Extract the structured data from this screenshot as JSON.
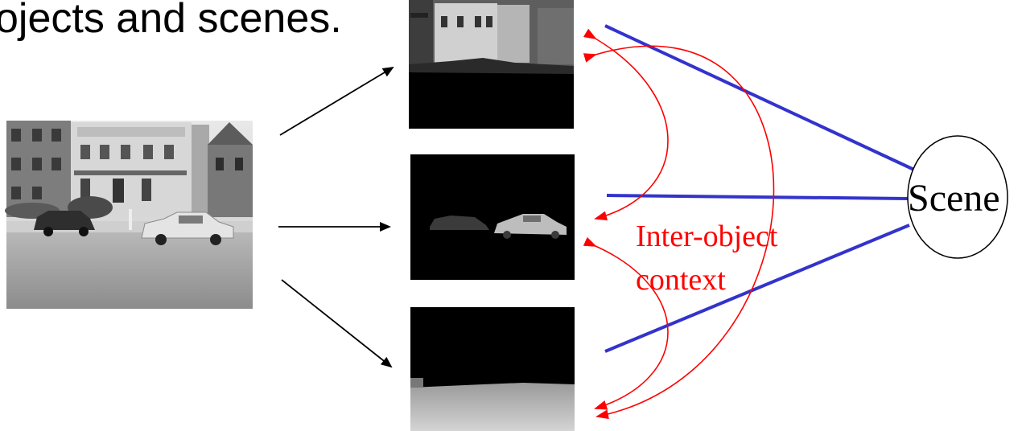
{
  "heading": "ojects and scenes.",
  "scene_node": {
    "label": "Scene"
  },
  "annotation": {
    "line1": "Inter-object",
    "line2": "context"
  },
  "colors": {
    "scene_link": "#3333cc",
    "context_arrow": "#ff0000",
    "arrow": "#000000",
    "annotation_text": "#ff0000"
  },
  "images": {
    "input": "street-photo",
    "outputs": [
      "building-segment",
      "car-segment",
      "road-segment"
    ]
  }
}
